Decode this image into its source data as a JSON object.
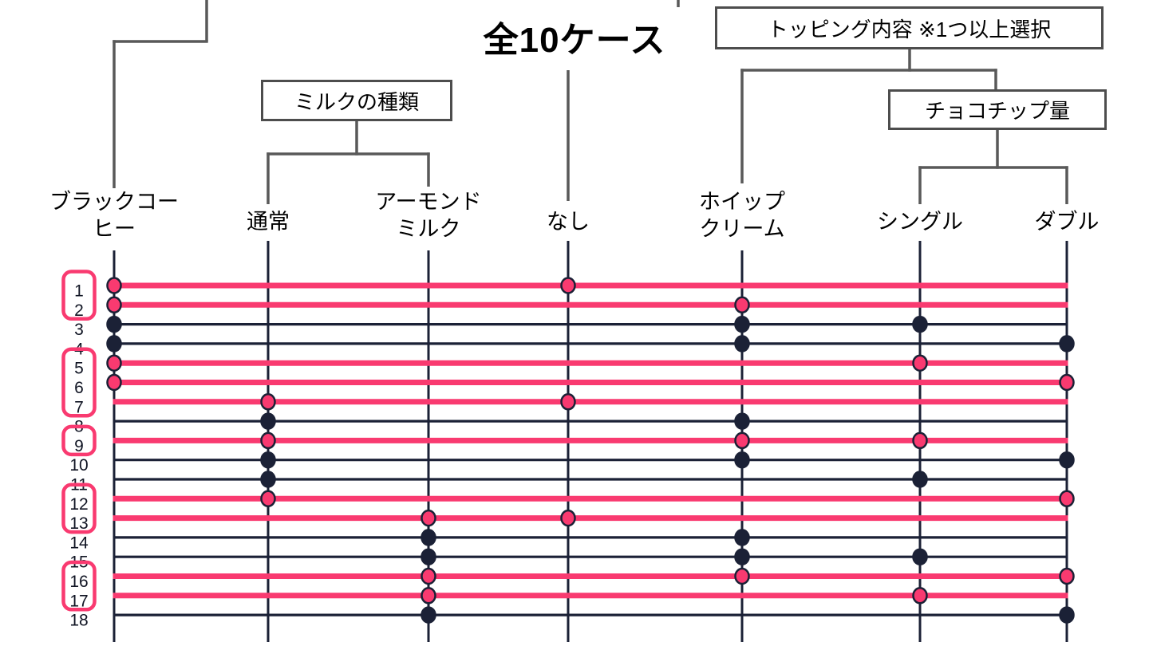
{
  "title": "全10ケース",
  "palette": {
    "pink": "#F93A70",
    "navy": "#1B2136",
    "tree_line": "#595959",
    "box_border": "#4D4D4D",
    "text": "#000000"
  },
  "tree": {
    "groups": [
      {
        "id": "milk-type",
        "label": "ミルクの種類",
        "children": [
          "通常",
          "アーモンドミルク"
        ]
      },
      {
        "id": "topping",
        "label": "トッピング内容 ※1つ以上選択",
        "children": [
          "ホイップクリーム",
          "チョコチップ量"
        ]
      },
      {
        "id": "choco-chip",
        "label": "チョコチップ量",
        "children": [
          "シングル",
          "ダブル"
        ]
      }
    ]
  },
  "columns": [
    {
      "id": "black-coffee",
      "label_lines": [
        "ブラックコー",
        "ヒー"
      ]
    },
    {
      "id": "normal",
      "label_lines": [
        "通常"
      ]
    },
    {
      "id": "almond-milk",
      "label_lines": [
        "アーモンド",
        "ミルク"
      ]
    },
    {
      "id": "none",
      "label_lines": [
        "なし"
      ]
    },
    {
      "id": "whipped-cream",
      "label_lines": [
        "ホイップ",
        "クリーム"
      ]
    },
    {
      "id": "single",
      "label_lines": [
        "シングル"
      ]
    },
    {
      "id": "double",
      "label_lines": [
        "ダブル"
      ]
    }
  ],
  "cases": [
    {
      "n": "1",
      "selected": true,
      "dots": [
        "black-coffee",
        "none"
      ]
    },
    {
      "n": "2",
      "selected": true,
      "dots": [
        "black-coffee",
        "whipped-cream"
      ]
    },
    {
      "n": "3",
      "selected": false,
      "dots": [
        "black-coffee",
        "whipped-cream",
        "single"
      ]
    },
    {
      "n": "4",
      "selected": false,
      "dots": [
        "black-coffee",
        "whipped-cream",
        "double"
      ]
    },
    {
      "n": "5",
      "selected": true,
      "dots": [
        "black-coffee",
        "single"
      ]
    },
    {
      "n": "6",
      "selected": true,
      "dots": [
        "black-coffee",
        "double"
      ]
    },
    {
      "n": "7",
      "selected": true,
      "dots": [
        "normal",
        "none"
      ]
    },
    {
      "n": "8",
      "selected": false,
      "dots": [
        "normal",
        "whipped-cream"
      ]
    },
    {
      "n": "9",
      "selected": true,
      "dots": [
        "normal",
        "whipped-cream",
        "single"
      ]
    },
    {
      "n": "10",
      "selected": false,
      "dots": [
        "normal",
        "whipped-cream",
        "double"
      ]
    },
    {
      "n": "11",
      "selected": false,
      "dots": [
        "normal",
        "single"
      ]
    },
    {
      "n": "12",
      "selected": true,
      "dots": [
        "normal",
        "double"
      ]
    },
    {
      "n": "13",
      "selected": true,
      "dots": [
        "almond-milk",
        "none"
      ]
    },
    {
      "n": "14",
      "selected": false,
      "dots": [
        "almond-milk",
        "whipped-cream"
      ]
    },
    {
      "n": "15",
      "selected": false,
      "dots": [
        "almond-milk",
        "whipped-cream",
        "single"
      ]
    },
    {
      "n": "16",
      "selected": true,
      "dots": [
        "almond-milk",
        "whipped-cream",
        "double"
      ]
    },
    {
      "n": "17",
      "selected": true,
      "dots": [
        "almond-milk",
        "single"
      ]
    },
    {
      "n": "18",
      "selected": false,
      "dots": [
        "almond-milk",
        "double"
      ]
    }
  ],
  "highlight_groups": [
    [
      "1",
      "2"
    ],
    [
      "5",
      "6",
      "7"
    ],
    [
      "9"
    ],
    [
      "12",
      "13"
    ],
    [
      "16",
      "17"
    ]
  ],
  "selected_count_note": "10"
}
